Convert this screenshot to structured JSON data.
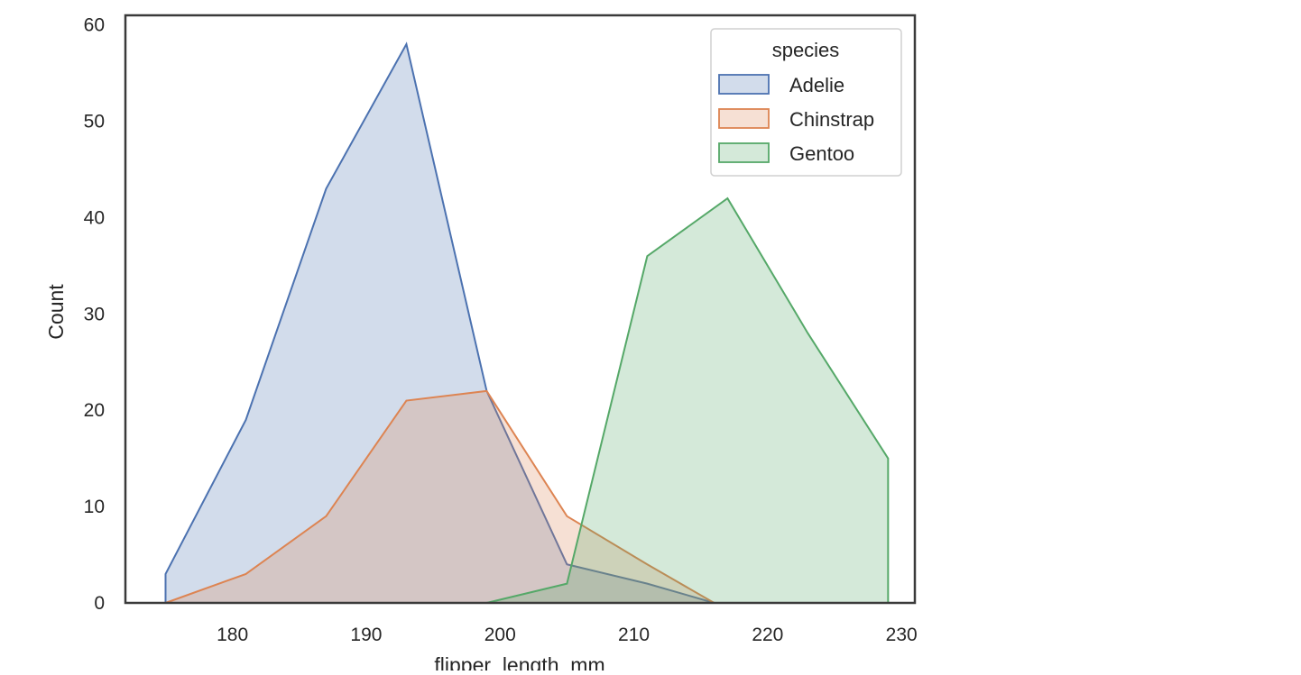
{
  "chart_data": {
    "type": "area",
    "title": "",
    "xlabel": "flipper_length_mm",
    "ylabel": "Count",
    "xlim": [
      172,
      231
    ],
    "ylim": [
      0,
      61
    ],
    "xticks": [
      180,
      190,
      200,
      210,
      220,
      230
    ],
    "yticks": [
      0,
      10,
      20,
      30,
      40,
      50,
      60
    ],
    "grid": false,
    "legend": {
      "title": "species",
      "placement": "top-right"
    },
    "series": [
      {
        "name": "Adelie",
        "color": "#4c72b0",
        "x": [
          175,
          181,
          187,
          193,
          199,
          205,
          211,
          216
        ],
        "y": [
          3,
          19,
          43,
          58,
          22,
          4,
          2,
          0
        ]
      },
      {
        "name": "Chinstrap",
        "color": "#dd8452",
        "x": [
          175,
          181,
          187,
          193,
          199,
          205,
          211,
          216
        ],
        "y": [
          0,
          3,
          9,
          21,
          22,
          9,
          4,
          0
        ]
      },
      {
        "name": "Gentoo",
        "color": "#55a868",
        "x": [
          199,
          205,
          211,
          217,
          223,
          229
        ],
        "y": [
          0,
          2,
          36,
          42,
          28,
          15
        ]
      }
    ]
  }
}
